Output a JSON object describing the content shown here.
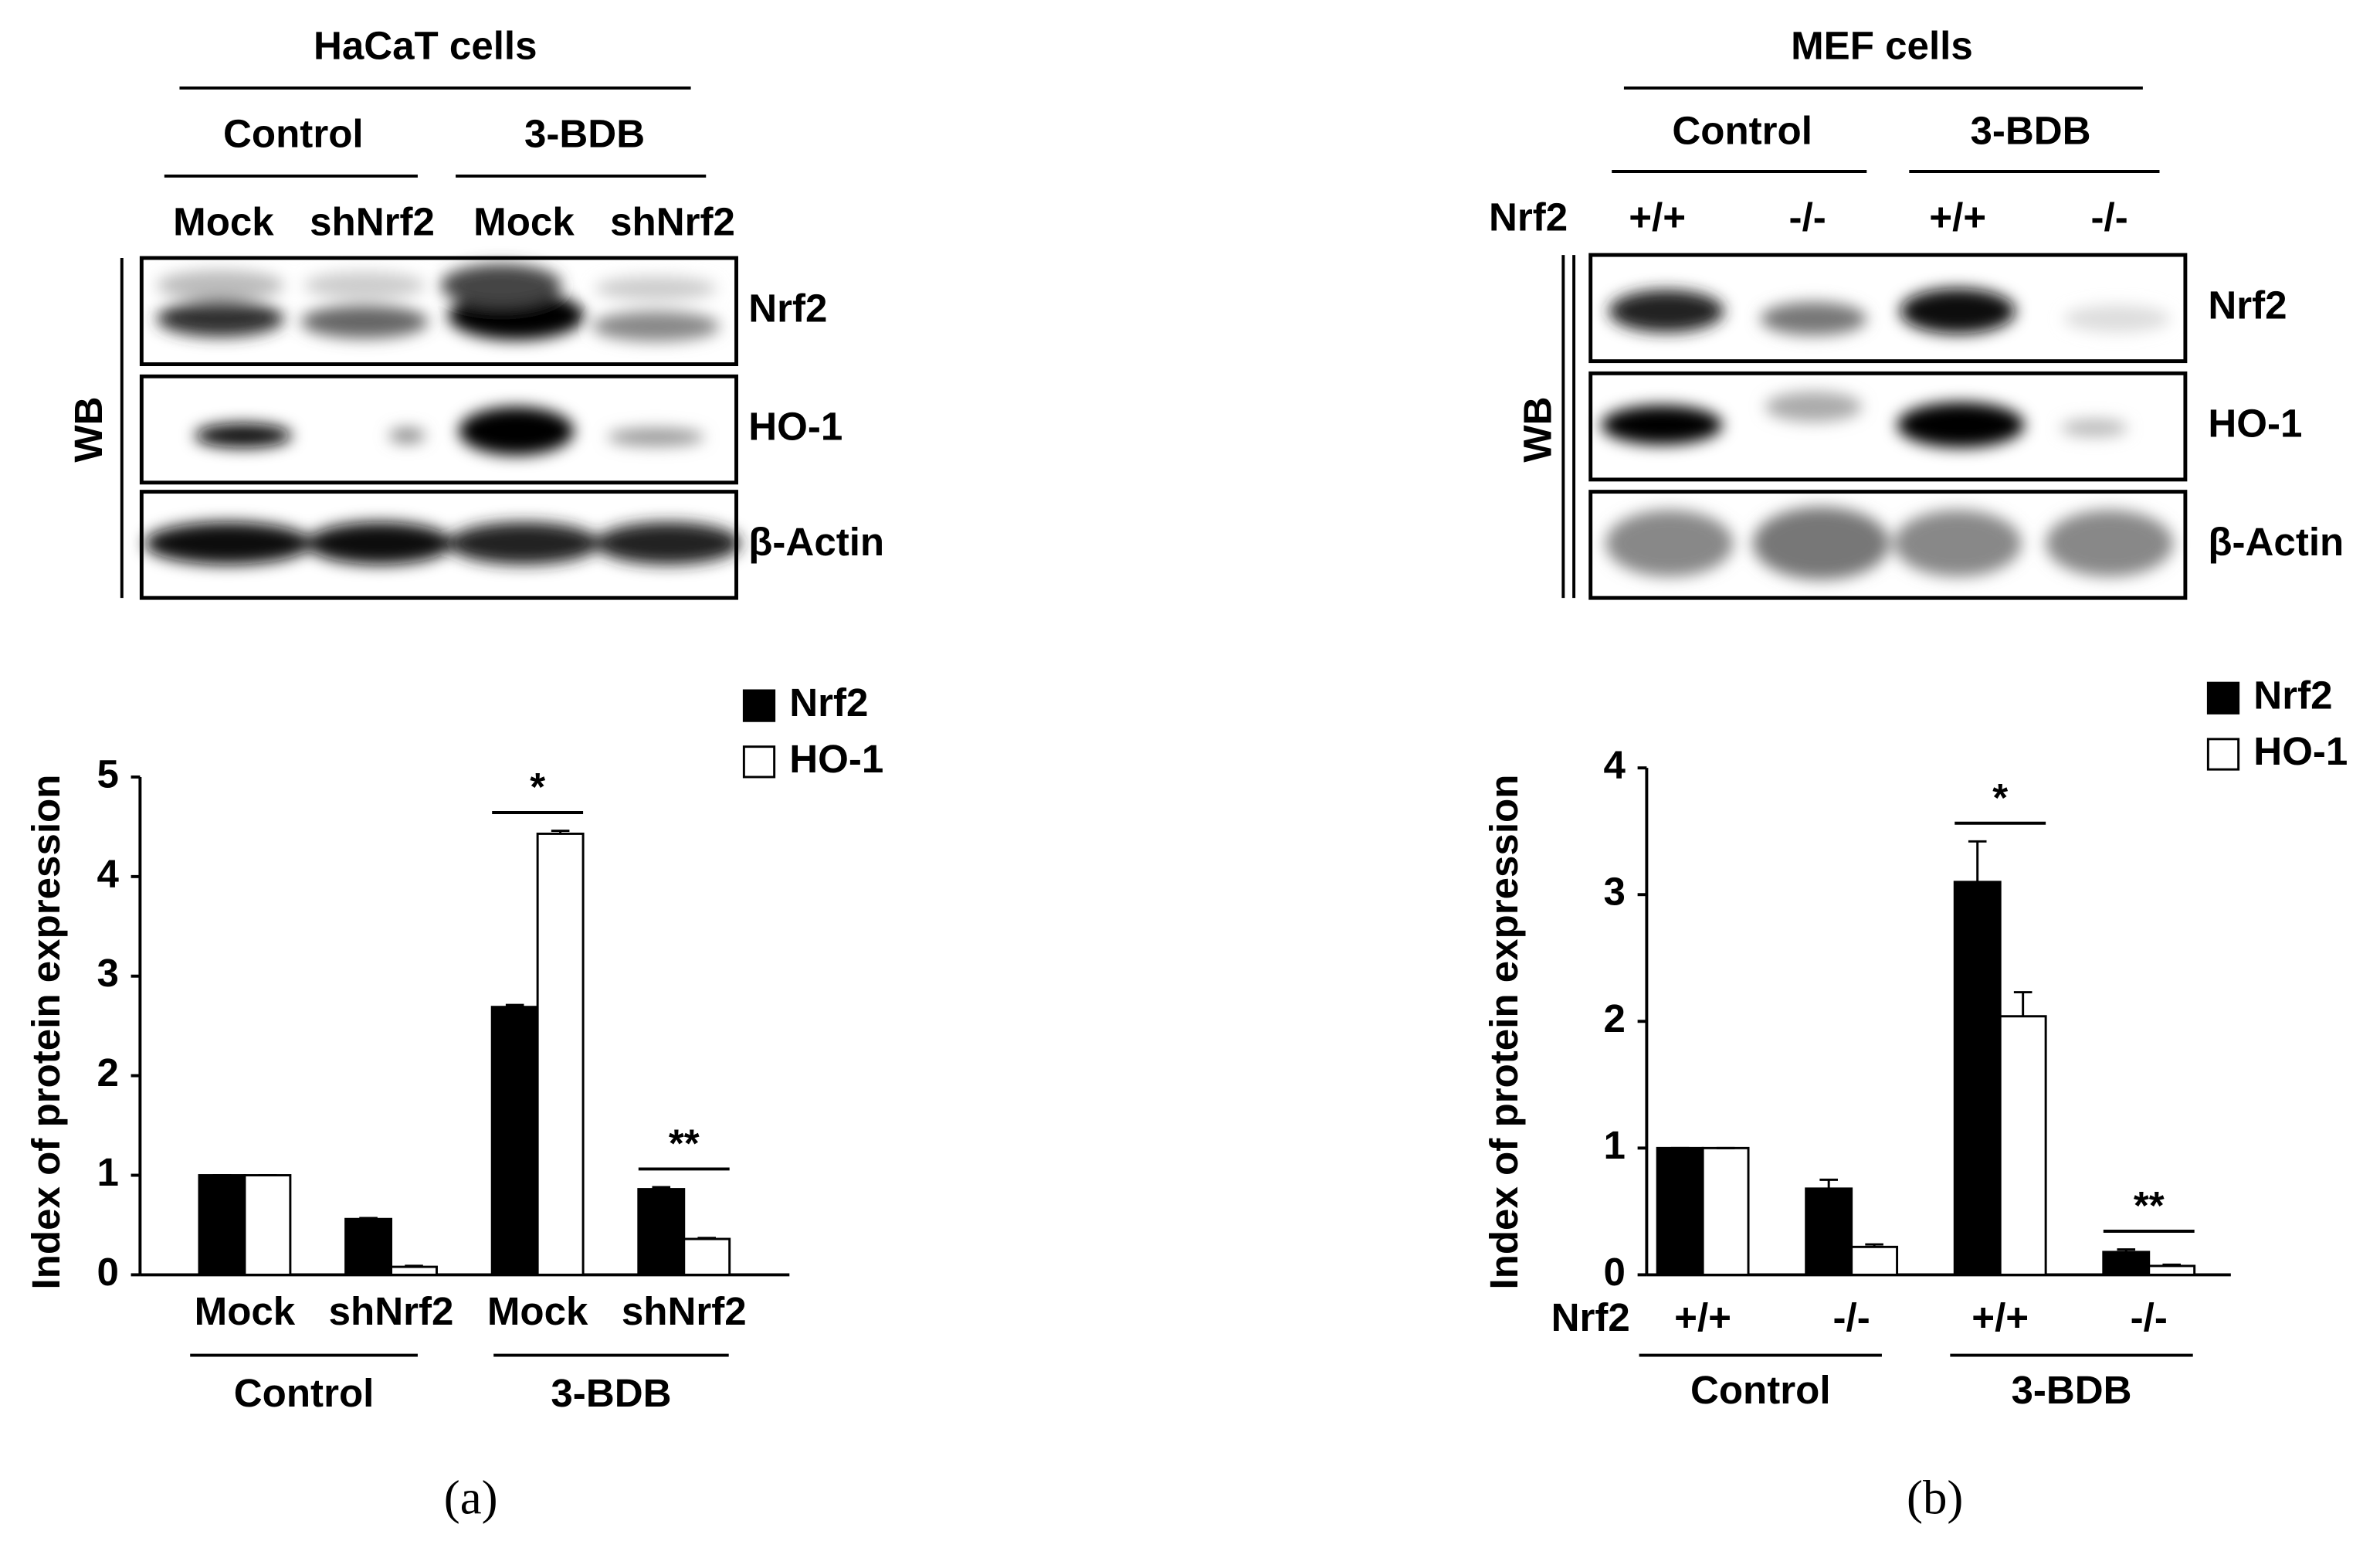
{
  "chart_data": [
    {
      "type": "bar",
      "y_label": "Index of protein expression",
      "categories": [
        "Mock",
        "shNrf2",
        "Mock",
        "shNrf2"
      ],
      "series": [
        {
          "name": "Nrf2",
          "color": "#000000",
          "values": [
            1,
            0.56,
            2.69,
            0.86
          ],
          "errors": [
            0,
            0.01,
            0.02,
            0.02
          ]
        },
        {
          "name": "HO-1",
          "color": "#ffffff",
          "values": [
            1,
            0.08,
            4.43,
            0.36
          ],
          "errors": [
            0,
            0.01,
            0.03,
            0.01
          ]
        }
      ],
      "groups": [
        "Control",
        "3-BDB"
      ],
      "annotations": [
        null,
        null,
        "*",
        "**"
      ],
      "ylim": [
        0,
        5
      ],
      "yticks": [
        0,
        1,
        2,
        3,
        4,
        5
      ]
    },
    {
      "type": "bar",
      "y_label": "Index of protein expression",
      "category_axis_label": "Nrf2",
      "categories": [
        "+/+",
        "-/-",
        "+/+",
        "-/-"
      ],
      "series": [
        {
          "name": "Nrf2",
          "color": "#000000",
          "values": [
            1,
            0.68,
            3.1,
            0.18
          ],
          "errors": [
            0,
            0.07,
            0.32,
            0.02
          ]
        },
        {
          "name": "HO-1",
          "color": "#ffffff",
          "values": [
            1,
            0.22,
            2.04,
            0.07
          ],
          "errors": [
            0,
            0.02,
            0.19,
            0.01
          ]
        }
      ],
      "groups": [
        "Control",
        "3-BDB"
      ],
      "annotations": [
        null,
        null,
        "*",
        "**"
      ],
      "ylim": [
        0,
        4
      ],
      "yticks": [
        0,
        1,
        2,
        3,
        4
      ]
    }
  ],
  "blots": [
    {
      "title": "HaCaT cells",
      "groups": [
        "Control",
        "3-BDB"
      ],
      "lanes": [
        "Mock",
        "shNrf2",
        "Mock",
        "shNrf2"
      ],
      "proteins": [
        "Nrf2",
        "HO-1",
        "β-Actin"
      ],
      "method": "WB"
    },
    {
      "title": "MEF cells",
      "groups": [
        "Control",
        "3-BDB"
      ],
      "lane_axis_label": "Nrf2",
      "lanes": [
        "+/+",
        "-/-",
        "+/+",
        "-/-"
      ],
      "proteins": [
        "Nrf2",
        "HO-1",
        "β-Actin"
      ],
      "method": "WB"
    }
  ],
  "panel_labels": [
    "(a)",
    "(b)"
  ]
}
